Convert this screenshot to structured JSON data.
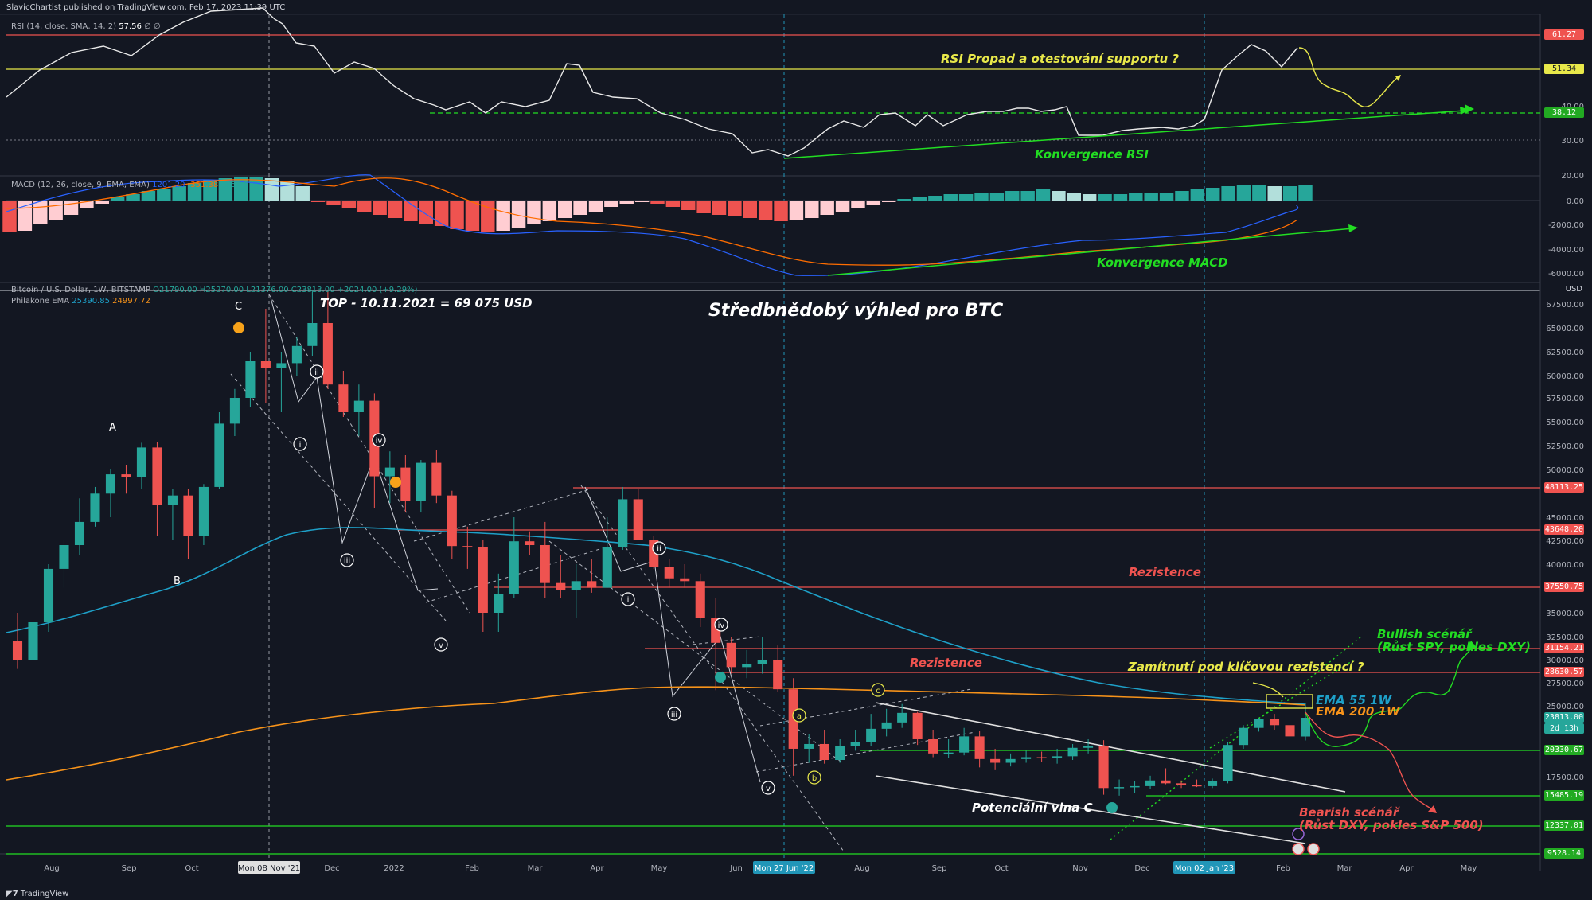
{
  "header": {
    "published": "SlavicChartist published on TradingView.com, Feb 17, 2023 11:39 UTC"
  },
  "colors": {
    "background": "#131722",
    "up": "#26a69a",
    "down": "#ef5350",
    "ema55": "#2196b8",
    "ema200": "#f7931a",
    "red_line": "#ef5350",
    "green_line": "#22dd22",
    "yellow_line": "#e8e84a"
  },
  "rsi_panel": {
    "label": "RSI (14, close, SMA, 14, 2)",
    "value": "57.56",
    "suffix": "∅ ∅",
    "axis_ticks": [
      "40.00",
      "30.00",
      "20.00"
    ],
    "tags": [
      {
        "text": "61.27",
        "color": "#ef5350"
      },
      {
        "text": "51.34",
        "color": "#e8e84a"
      },
      {
        "text": "38.12",
        "color": "#22aa22"
      }
    ],
    "annotations": {
      "drop": "RSI Propad a otestování supportu ?",
      "convergence": "Konvergence RSI"
    }
  },
  "macd_panel": {
    "label": "MACD (12, 26, close, 9, EMA, EMA)",
    "values": [
      "1201.20",
      "-351.38",
      "1552.57"
    ],
    "axis_ticks": [
      "0.00",
      "-2000.00",
      "-4000.00",
      "-6000.00"
    ],
    "annotation": "Konvergence MACD"
  },
  "price_panel": {
    "label_symbol": "Bitcoin / U.S. Dollar, 1W, BITSTAMP",
    "ohlc": "O21790.00  H25270.00  L21376.00  C23813.00  +2024.00 (+9.29%)",
    "ema_label": "Philakone EMA",
    "ema_values": [
      "25390.85",
      "24997.72"
    ],
    "currency": "USD",
    "title": "Středbnědobý výhled pro BTC",
    "top_note": "TOP - 10.11.2021 = 69 075 USD",
    "axis_ticks": [
      "67500.00",
      "65000.00",
      "62500.00",
      "60000.00",
      "57500.00",
      "55000.00",
      "52500.00",
      "50000.00",
      "45000.00",
      "42500.00",
      "40000.00",
      "35000.00",
      "32500.00",
      "30000.00",
      "27500.00",
      "25000.00",
      "22500.00",
      "17500.00",
      "12500.00"
    ],
    "level_tags": [
      {
        "text": "48113.25",
        "color": "#ef5350"
      },
      {
        "text": "43648.20",
        "color": "#ef5350"
      },
      {
        "text": "37550.75",
        "color": "#ef5350"
      },
      {
        "text": "31154.21",
        "color": "#ef5350"
      },
      {
        "text": "28630.57",
        "color": "#ef5350"
      },
      {
        "text": "20330.67",
        "color": "#22aa22"
      },
      {
        "text": "15485.19",
        "color": "#22aa22"
      },
      {
        "text": "12337.01",
        "color": "#22aa22"
      },
      {
        "text": "9528.14",
        "color": "#22aa22"
      }
    ],
    "current_price": "23813.00",
    "countdown": "2d 13h",
    "annotations": {
      "resistance_1": "Rezistence",
      "resistance_2": "Rezistence",
      "rejection": "Zamítnutí pod klíčovou rezistencí ?",
      "ema55": "EMA 55 1W",
      "ema200": "EMA 200 1W",
      "bullish_1": "Bullish scénář",
      "bullish_2": "(Růst SPY, pokles DXY)",
      "bearish_1": "Bearish scénář",
      "bearish_2": "(Růst DXY, pokles S&P 500)",
      "wave_c": "Potenciální vlna C"
    },
    "wave_labels": [
      "A",
      "B",
      "C",
      "i",
      "ii",
      "iii",
      "iv",
      "v",
      "i",
      "ii",
      "iii",
      "iv",
      "v",
      "a",
      "b",
      "c"
    ]
  },
  "x_axis": {
    "ticks": [
      "Aug",
      "Sep",
      "Oct",
      "Dec",
      "2022",
      "Feb",
      "Mar",
      "Apr",
      "May",
      "Jun",
      "Aug",
      "Sep",
      "Oct",
      "Nov",
      "Dec",
      "Feb",
      "Mar",
      "Apr",
      "May"
    ],
    "highlights": [
      "Mon 08 Nov '21",
      "Mon 27 Jun '22",
      "Mon 02 Jan '23"
    ]
  },
  "footer": {
    "brand": "TradingView"
  },
  "chart_data": {
    "type": "candlestick",
    "title": "Středbnědobý výhled pro BTC",
    "symbol": "Bitcoin / U.S. Dollar, 1W, BITSTAMP",
    "ylim": [
      9000,
      70000
    ],
    "candles": [
      {
        "o": 32000,
        "h": 35000,
        "l": 29000,
        "c": 30000
      },
      {
        "o": 30000,
        "h": 36000,
        "l": 29500,
        "c": 34000
      },
      {
        "o": 34000,
        "h": 40000,
        "l": 33000,
        "c": 39500
      },
      {
        "o": 39500,
        "h": 42500,
        "l": 37500,
        "c": 42000
      },
      {
        "o": 42000,
        "h": 47000,
        "l": 41000,
        "c": 44500
      },
      {
        "o": 44500,
        "h": 48200,
        "l": 44000,
        "c": 47500
      },
      {
        "o": 47500,
        "h": 50000,
        "l": 45000,
        "c": 49500
      },
      {
        "o": 49500,
        "h": 50500,
        "l": 47500,
        "c": 49200
      },
      {
        "o": 49200,
        "h": 52800,
        "l": 48000,
        "c": 52300
      },
      {
        "o": 52300,
        "h": 52900,
        "l": 43000,
        "c": 46300
      },
      {
        "o": 46300,
        "h": 48000,
        "l": 42500,
        "c": 47300
      },
      {
        "o": 47300,
        "h": 48000,
        "l": 40500,
        "c": 43000
      },
      {
        "o": 43000,
        "h": 48500,
        "l": 42000,
        "c": 48200
      },
      {
        "o": 48200,
        "h": 56000,
        "l": 48000,
        "c": 54800
      },
      {
        "o": 54800,
        "h": 58500,
        "l": 53500,
        "c": 57500
      },
      {
        "o": 57500,
        "h": 62500,
        "l": 56500,
        "c": 61500
      },
      {
        "o": 61500,
        "h": 67000,
        "l": 57000,
        "c": 60800
      },
      {
        "o": 60800,
        "h": 62500,
        "l": 56000,
        "c": 61300
      },
      {
        "o": 61300,
        "h": 64000,
        "l": 60000,
        "c": 63100
      },
      {
        "o": 63100,
        "h": 69000,
        "l": 62000,
        "c": 65500
      },
      {
        "o": 65500,
        "h": 68800,
        "l": 58500,
        "c": 59000
      },
      {
        "o": 59000,
        "h": 60500,
        "l": 55500,
        "c": 56000
      },
      {
        "o": 56000,
        "h": 59000,
        "l": 53500,
        "c": 57200
      },
      {
        "o": 57200,
        "h": 58000,
        "l": 46000,
        "c": 49300
      },
      {
        "o": 49300,
        "h": 51900,
        "l": 46500,
        "c": 50200
      },
      {
        "o": 50200,
        "h": 51500,
        "l": 45500,
        "c": 46700
      },
      {
        "o": 46700,
        "h": 51000,
        "l": 45500,
        "c": 50700
      },
      {
        "o": 50700,
        "h": 52000,
        "l": 46500,
        "c": 47300
      },
      {
        "o": 47300,
        "h": 47800,
        "l": 40500,
        "c": 41900
      },
      {
        "o": 41900,
        "h": 44000,
        "l": 39500,
        "c": 41800
      },
      {
        "o": 41800,
        "h": 42500,
        "l": 33000,
        "c": 35000
      },
      {
        "o": 35000,
        "h": 39000,
        "l": 33000,
        "c": 36900
      },
      {
        "o": 36900,
        "h": 45000,
        "l": 36500,
        "c": 42400
      },
      {
        "o": 42400,
        "h": 43500,
        "l": 41000,
        "c": 42000
      },
      {
        "o": 42000,
        "h": 44500,
        "l": 36500,
        "c": 38000
      },
      {
        "o": 38000,
        "h": 41000,
        "l": 36500,
        "c": 37300
      },
      {
        "o": 37300,
        "h": 40000,
        "l": 34500,
        "c": 38200
      },
      {
        "o": 38200,
        "h": 40500,
        "l": 37000,
        "c": 37500
      },
      {
        "o": 37500,
        "h": 45000,
        "l": 37500,
        "c": 41800
      },
      {
        "o": 41800,
        "h": 48200,
        "l": 41500,
        "c": 46900
      },
      {
        "o": 46900,
        "h": 48000,
        "l": 42500,
        "c": 42500
      },
      {
        "o": 42500,
        "h": 43000,
        "l": 39500,
        "c": 39700
      },
      {
        "o": 39700,
        "h": 40500,
        "l": 37500,
        "c": 38500
      },
      {
        "o": 38500,
        "h": 40000,
        "l": 37500,
        "c": 38200
      },
      {
        "o": 38200,
        "h": 39000,
        "l": 33500,
        "c": 34500
      },
      {
        "o": 34500,
        "h": 36500,
        "l": 26700,
        "c": 31800
      },
      {
        "o": 31800,
        "h": 32500,
        "l": 28500,
        "c": 29200
      },
      {
        "o": 29200,
        "h": 31000,
        "l": 28000,
        "c": 29500
      },
      {
        "o": 29500,
        "h": 32500,
        "l": 28500,
        "c": 30000
      },
      {
        "o": 30000,
        "h": 31500,
        "l": 26500,
        "c": 26800
      },
      {
        "o": 26800,
        "h": 28000,
        "l": 17600,
        "c": 20500
      },
      {
        "o": 20500,
        "h": 22000,
        "l": 19000,
        "c": 21000
      },
      {
        "o": 21000,
        "h": 22500,
        "l": 18900,
        "c": 19300
      },
      {
        "o": 19300,
        "h": 21500,
        "l": 19000,
        "c": 20800
      },
      {
        "o": 20800,
        "h": 22500,
        "l": 20300,
        "c": 21200
      },
      {
        "o": 21200,
        "h": 24200,
        "l": 20800,
        "c": 22600
      },
      {
        "o": 22600,
        "h": 24700,
        "l": 21800,
        "c": 23300
      },
      {
        "o": 23300,
        "h": 25200,
        "l": 22700,
        "c": 24300
      },
      {
        "o": 24300,
        "h": 24400,
        "l": 20900,
        "c": 21500
      },
      {
        "o": 21500,
        "h": 22500,
        "l": 19600,
        "c": 20000
      },
      {
        "o": 20000,
        "h": 21500,
        "l": 19500,
        "c": 20100
      },
      {
        "o": 20100,
        "h": 22700,
        "l": 19800,
        "c": 21800
      },
      {
        "o": 21800,
        "h": 22400,
        "l": 18500,
        "c": 19400
      },
      {
        "o": 19400,
        "h": 20500,
        "l": 18200,
        "c": 19000
      },
      {
        "o": 19000,
        "h": 20000,
        "l": 18600,
        "c": 19400
      },
      {
        "o": 19400,
        "h": 20300,
        "l": 19000,
        "c": 19600
      },
      {
        "o": 19600,
        "h": 20200,
        "l": 19100,
        "c": 19500
      },
      {
        "o": 19500,
        "h": 20500,
        "l": 18900,
        "c": 19700
      },
      {
        "o": 19700,
        "h": 21000,
        "l": 19300,
        "c": 20600
      },
      {
        "o": 20600,
        "h": 21500,
        "l": 20000,
        "c": 20800
      },
      {
        "o": 20800,
        "h": 21400,
        "l": 15600,
        "c": 16300
      },
      {
        "o": 16300,
        "h": 17200,
        "l": 15500,
        "c": 16400
      },
      {
        "o": 16400,
        "h": 17000,
        "l": 15800,
        "c": 16500
      },
      {
        "o": 16500,
        "h": 17600,
        "l": 16200,
        "c": 17100
      },
      {
        "o": 17100,
        "h": 18400,
        "l": 16700,
        "c": 16800
      },
      {
        "o": 16800,
        "h": 17100,
        "l": 16300,
        "c": 16600
      },
      {
        "o": 16600,
        "h": 17200,
        "l": 16400,
        "c": 16500
      },
      {
        "o": 16500,
        "h": 17300,
        "l": 16300,
        "c": 17000
      },
      {
        "o": 17000,
        "h": 21200,
        "l": 16800,
        "c": 20900
      },
      {
        "o": 20900,
        "h": 23000,
        "l": 20500,
        "c": 22700
      },
      {
        "o": 22700,
        "h": 23800,
        "l": 22300,
        "c": 23700
      },
      {
        "o": 23700,
        "h": 24200,
        "l": 22500,
        "c": 23000
      },
      {
        "o": 23000,
        "h": 23400,
        "l": 21400,
        "c": 21800
      },
      {
        "o": 21790,
        "h": 25270,
        "l": 21376,
        "c": 23813
      }
    ]
  }
}
